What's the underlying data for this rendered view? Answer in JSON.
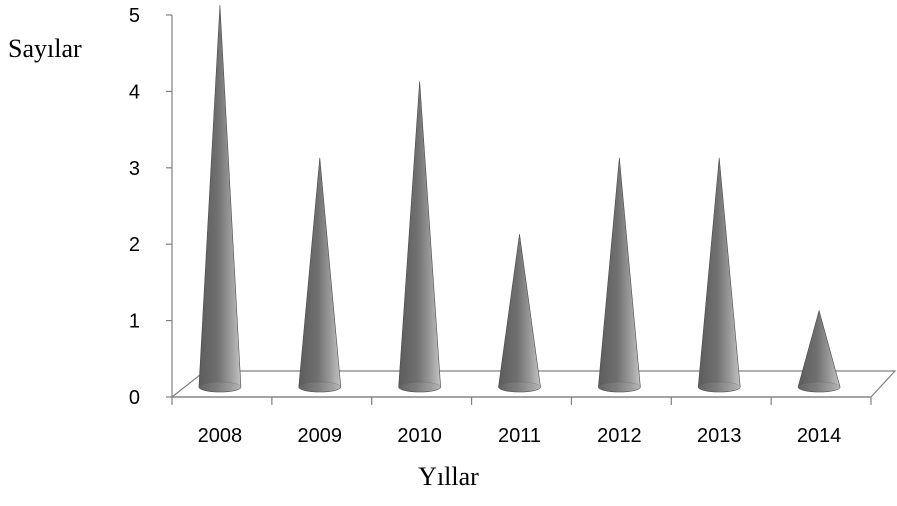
{
  "chart_data": {
    "type": "bar",
    "style": "3d-cone",
    "categories": [
      "2008",
      "2009",
      "2010",
      "2011",
      "2012",
      "2013",
      "2014"
    ],
    "values": [
      5,
      3,
      4,
      2,
      3,
      3,
      1
    ],
    "title": "",
    "xlabel": "Yıllar",
    "ylabel": "Sayılar",
    "ylim": [
      0,
      5
    ],
    "yticks": [
      "0",
      "1",
      "2",
      "3",
      "4",
      "5"
    ],
    "grid": false,
    "legend": "none",
    "colors": {
      "cone_dark": "#5a5a5a",
      "cone_mid": "#8c8c8c",
      "cone_light": "#b8b8b8",
      "axis": "#808080"
    }
  }
}
